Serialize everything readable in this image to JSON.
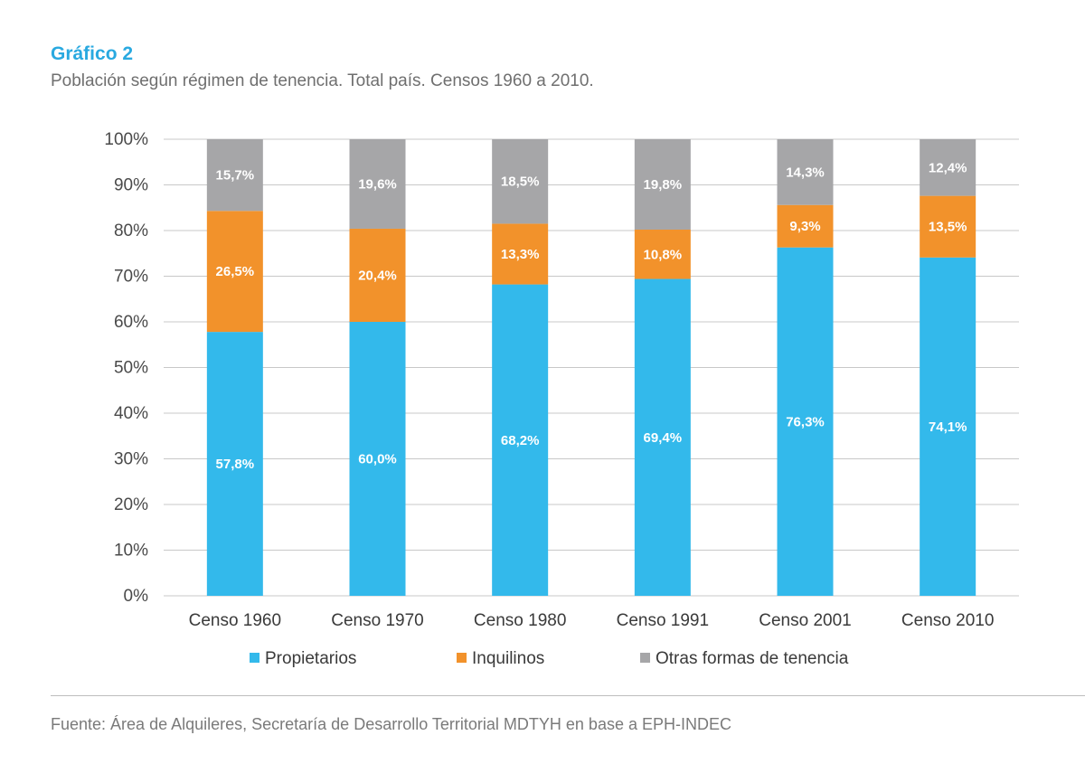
{
  "title": "Gráfico 2",
  "subtitle": "Población según régimen de tenencia. Total país. Censos 1960 a 2010.",
  "source": "Fuente: Área de Alquileres, Secretaría de Desarrollo Territorial MDTYH en base a EPH-INDEC",
  "colors": {
    "propietarios": "#33b9eb",
    "inquilinos": "#f2922b",
    "otras": "#a6a6a8",
    "gridline": "#c8c8c8",
    "title": "#29a9e0"
  },
  "chart_data": {
    "type": "bar",
    "stacked": true,
    "categories": [
      "Censo 1960",
      "Censo 1970",
      "Censo 1980",
      "Censo 1991",
      "Censo 2001",
      "Censo 2010"
    ],
    "series": [
      {
        "name": "Propietarios",
        "values": [
          57.8,
          60.0,
          68.2,
          69.4,
          76.3,
          74.1
        ],
        "labels": [
          "57,8%",
          "60,0%",
          "68,2%",
          "69,4%",
          "76,3%",
          "74,1%"
        ]
      },
      {
        "name": "Inquilinos",
        "values": [
          26.5,
          20.4,
          13.3,
          10.8,
          9.3,
          13.5
        ],
        "labels": [
          "26,5%",
          "20,4%",
          "13,3%",
          "10,8%",
          "9,3%",
          "13,5%"
        ]
      },
      {
        "name": "Otras formas de tenencia",
        "values": [
          15.7,
          19.6,
          18.5,
          19.8,
          14.3,
          12.4
        ],
        "labels": [
          "15,7%",
          "19,6%",
          "18,5%",
          "19,8%",
          "14,3%",
          "12,4%"
        ]
      }
    ],
    "ylim": [
      0,
      100
    ],
    "yticks": [
      "0%",
      "10%",
      "20%",
      "30%",
      "40%",
      "50%",
      "60%",
      "70%",
      "80%",
      "90%",
      "100%"
    ],
    "grid": true,
    "legend_position": "bottom"
  }
}
